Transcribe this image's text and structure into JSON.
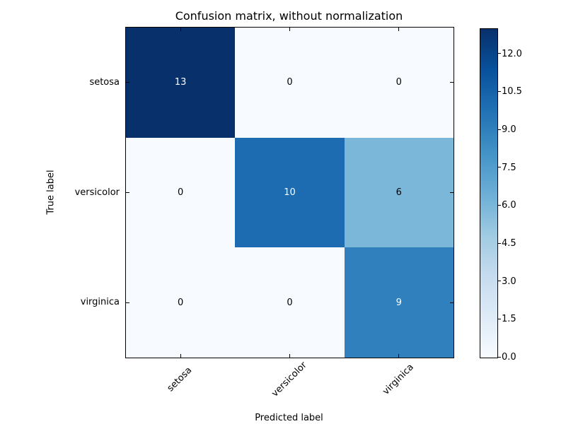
{
  "chart_data": {
    "type": "heatmap",
    "title": "Confusion matrix, without normalization",
    "xlabel": "Predicted label",
    "ylabel": "True label",
    "categories": [
      "setosa",
      "versicolor",
      "virginica"
    ],
    "matrix": [
      [
        13,
        0,
        0
      ],
      [
        0,
        10,
        6
      ],
      [
        0,
        0,
        9
      ]
    ],
    "vmin": 0,
    "vmax": 13,
    "colormap": "Blues",
    "grid": false,
    "cell_colors": [
      [
        "#08306b",
        "#f7fbff",
        "#f7fbff"
      ],
      [
        "#f7fbff",
        "#1d6cb1",
        "#7bb7d9"
      ],
      [
        "#f7fbff",
        "#f7fbff",
        "#3080bd"
      ]
    ],
    "cell_text_colors": [
      [
        "#ffffff",
        "#000000",
        "#000000"
      ],
      [
        "#000000",
        "#ffffff",
        "#000000"
      ],
      [
        "#000000",
        "#000000",
        "#ffffff"
      ]
    ],
    "colorbar": {
      "position": "right",
      "tick_labels": [
        "0.0",
        "1.5",
        "3.0",
        "4.5",
        "6.0",
        "7.5",
        "9.0",
        "10.5",
        "12.0"
      ],
      "tick_values": [
        0,
        1.5,
        3,
        4.5,
        6,
        7.5,
        9,
        10.5,
        12
      ],
      "gradient_stops": [
        {
          "color": "#f7fbff",
          "pos": 0
        },
        {
          "color": "#deebf7",
          "pos": 12.5
        },
        {
          "color": "#c6dbef",
          "pos": 25
        },
        {
          "color": "#9ecae1",
          "pos": 37.5
        },
        {
          "color": "#6baed6",
          "pos": 50
        },
        {
          "color": "#4292c6",
          "pos": 62.5
        },
        {
          "color": "#2171b5",
          "pos": 75
        },
        {
          "color": "#08519c",
          "pos": 87.5
        },
        {
          "color": "#08306b",
          "pos": 100
        }
      ]
    },
    "axis_color": "#000000",
    "background_color": "#ffffff"
  }
}
